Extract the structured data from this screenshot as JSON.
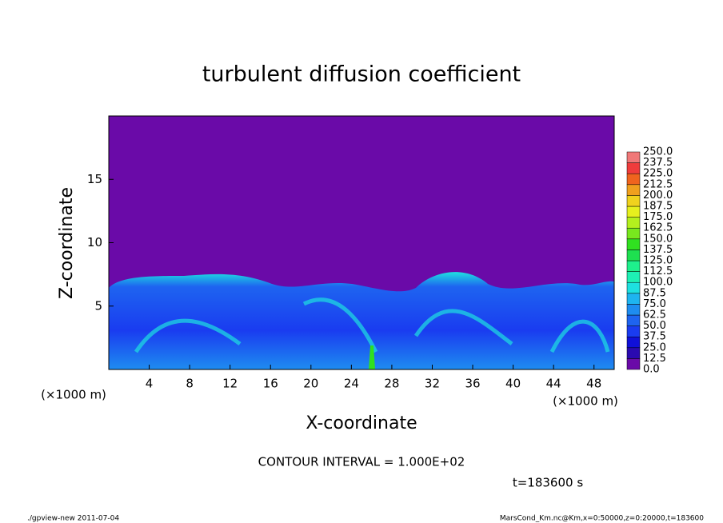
{
  "chart_data": {
    "type": "heatmap",
    "title": "turbulent diffusion coefficient",
    "x_label": "X-coordinate",
    "y_label": "Z-coordinate",
    "x_unit": "(×1000 m)",
    "y_unit": "(×1000 m)",
    "xlim": [
      0,
      50
    ],
    "xticks": [
      4,
      8,
      12,
      16,
      20,
      24,
      28,
      32,
      36,
      40,
      44,
      48
    ],
    "ylim": [
      0,
      20
    ],
    "yticks": [
      5,
      10,
      15
    ],
    "colorbar_levels": [
      {
        "value": 0,
        "label": "0.0"
      },
      {
        "value": 12.5,
        "label": "12.5"
      },
      {
        "value": 25,
        "label": "25.0"
      },
      {
        "value": 37.5,
        "label": "37.5"
      },
      {
        "value": 50,
        "label": "50.0"
      },
      {
        "value": 62.5,
        "label": "62.5"
      },
      {
        "value": 75,
        "label": "75.0"
      },
      {
        "value": 87.5,
        "label": "87.5"
      },
      {
        "value": 100,
        "label": "100.0"
      },
      {
        "value": 112.5,
        "label": "112.5"
      },
      {
        "value": 125,
        "label": "125.0"
      },
      {
        "value": 137.5,
        "label": "137.5"
      },
      {
        "value": 150,
        "label": "150.0"
      },
      {
        "value": 162.5,
        "label": "162.5"
      },
      {
        "value": 175,
        "label": "175.0"
      },
      {
        "value": 187.5,
        "label": "187.5"
      },
      {
        "value": 200,
        "label": "200.0"
      },
      {
        "value": 212.5,
        "label": "212.5"
      },
      {
        "value": 225,
        "label": "225.0"
      },
      {
        "value": 237.5,
        "label": "237.5"
      },
      {
        "value": 250,
        "label": "250.0"
      }
    ],
    "colorbar_colors": [
      "#6a0aa8",
      "#2a0ab0",
      "#1010d8",
      "#1a3cf0",
      "#1e64f0",
      "#1e8cf0",
      "#1eb4f0",
      "#1ee0e0",
      "#1ef0b4",
      "#1ef08c",
      "#1ee050",
      "#30e020",
      "#78e81e",
      "#b4f01e",
      "#e6f01e",
      "#f0d21e",
      "#f0a01e",
      "#f0641e",
      "#f03c3c",
      "#f07878"
    ],
    "contour_interval": "CONTOUR INTERVAL = 1.000E+02",
    "time_label": "t=183600 s",
    "footer_left": "./gpview-new  2011-07-04",
    "footer_right": "MarsCond_Km.nc@Km,x=0:50000,z=0:20000,t=183600"
  }
}
